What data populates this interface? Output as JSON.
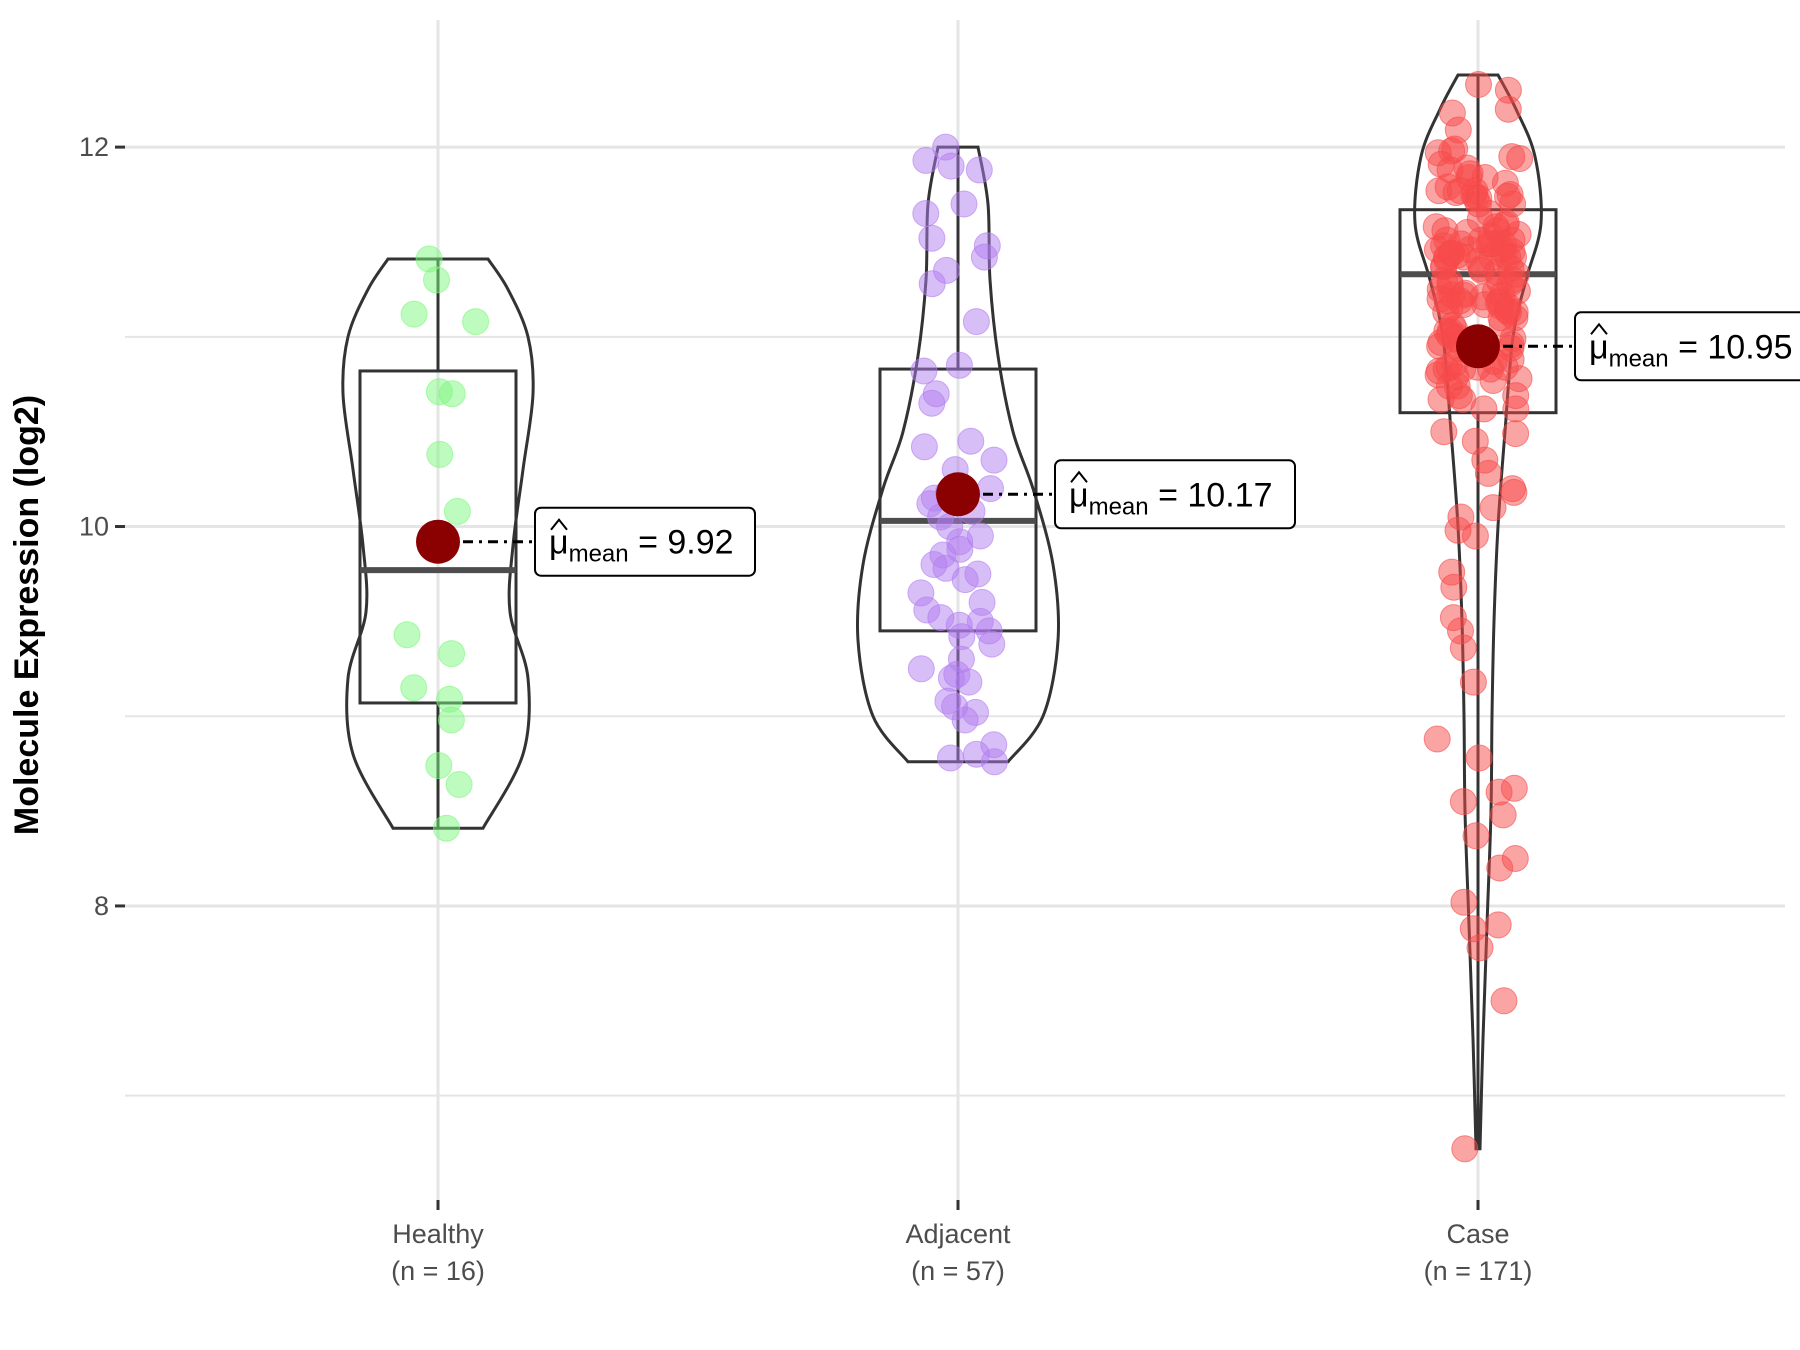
{
  "chart_data": {
    "type": "violin",
    "ylabel": "Molecule Expression (log2)",
    "xlabel": "",
    "ylim": [
      6.45,
      12.67
    ],
    "yticks": [
      8,
      10,
      12
    ],
    "ytick_labels": [
      "8",
      "10",
      "12"
    ],
    "grid": true,
    "colors": {
      "Healthy": "#7df77d",
      "Adjacent": "#b27df0",
      "Case": "#f74a4a",
      "mean": "#8b0000",
      "outline": "#333333",
      "grid": "#e5e5e5"
    },
    "groups": [
      {
        "name": "Healthy",
        "line1": "Healthy",
        "line2": "(n = 16)",
        "n": 16,
        "min": 8.41,
        "q1": 9.07,
        "median": 9.77,
        "q3": 10.82,
        "max": 11.41,
        "mean": 9.92,
        "mean_label": "9.92",
        "points": [
          11.41,
          11.3,
          11.12,
          11.08,
          10.71,
          10.7,
          10.38,
          10.08,
          9.43,
          9.33,
          9.15,
          9.09,
          8.98,
          8.74,
          8.64,
          8.41
        ]
      },
      {
        "name": "Adjacent",
        "line1": "Adjacent",
        "line2": "(n = 57)",
        "n": 57,
        "min": 8.76,
        "q1": 9.45,
        "median": 10.03,
        "q3": 10.83,
        "max": 12.0,
        "mean": 10.17,
        "mean_label": "10.17",
        "points": [
          12.0,
          11.93,
          11.9,
          11.88,
          11.7,
          11.65,
          11.52,
          11.48,
          11.42,
          11.35,
          11.28,
          11.08,
          10.85,
          10.82,
          10.7,
          10.65,
          10.45,
          10.42,
          10.35,
          10.3,
          10.2,
          10.18,
          10.15,
          10.12,
          10.08,
          10.05,
          10.0,
          9.95,
          9.92,
          9.88,
          9.85,
          9.8,
          9.78,
          9.75,
          9.72,
          9.65,
          9.6,
          9.56,
          9.52,
          9.5,
          9.48,
          9.45,
          9.42,
          9.38,
          9.3,
          9.25,
          9.22,
          9.2,
          9.18,
          9.08,
          9.05,
          9.02,
          8.98,
          8.85,
          8.8,
          8.78,
          8.76
        ]
      },
      {
        "name": "Case",
        "line1": "Case",
        "line2": "(n = 171)",
        "n": 171,
        "min": 6.72,
        "q1": 10.6,
        "median": 11.33,
        "q3": 11.67,
        "max": 12.38,
        "mean": 10.95,
        "mean_label": "10.95",
        "points": []
      }
    ],
    "violins": [
      {
        "name": "Healthy",
        "ys": [
          8.41,
          8.8,
          9.2,
          9.55,
          9.9,
          10.3,
          10.7,
          11.0,
          11.25,
          11.41
        ],
        "ws": [
          0.45,
          0.85,
          0.9,
          0.72,
          0.75,
          0.85,
          0.95,
          0.9,
          0.7,
          0.5
        ]
      },
      {
        "name": "Adjacent",
        "ys": [
          8.76,
          9.0,
          9.4,
          9.8,
          10.2,
          10.5,
          10.9,
          11.3,
          11.7,
          12.0
        ],
        "ws": [
          0.5,
          0.85,
          1.0,
          0.95,
          0.75,
          0.55,
          0.4,
          0.32,
          0.3,
          0.2
        ]
      },
      {
        "name": "Case",
        "ys": [
          6.72,
          7.3,
          7.9,
          8.5,
          9.0,
          9.5,
          10.0,
          10.5,
          11.0,
          11.3,
          11.6,
          11.95,
          12.2,
          12.38
        ],
        "ws": [
          0.02,
          0.05,
          0.09,
          0.13,
          0.14,
          0.16,
          0.2,
          0.27,
          0.35,
          0.48,
          0.63,
          0.57,
          0.38,
          0.2
        ]
      }
    ]
  }
}
